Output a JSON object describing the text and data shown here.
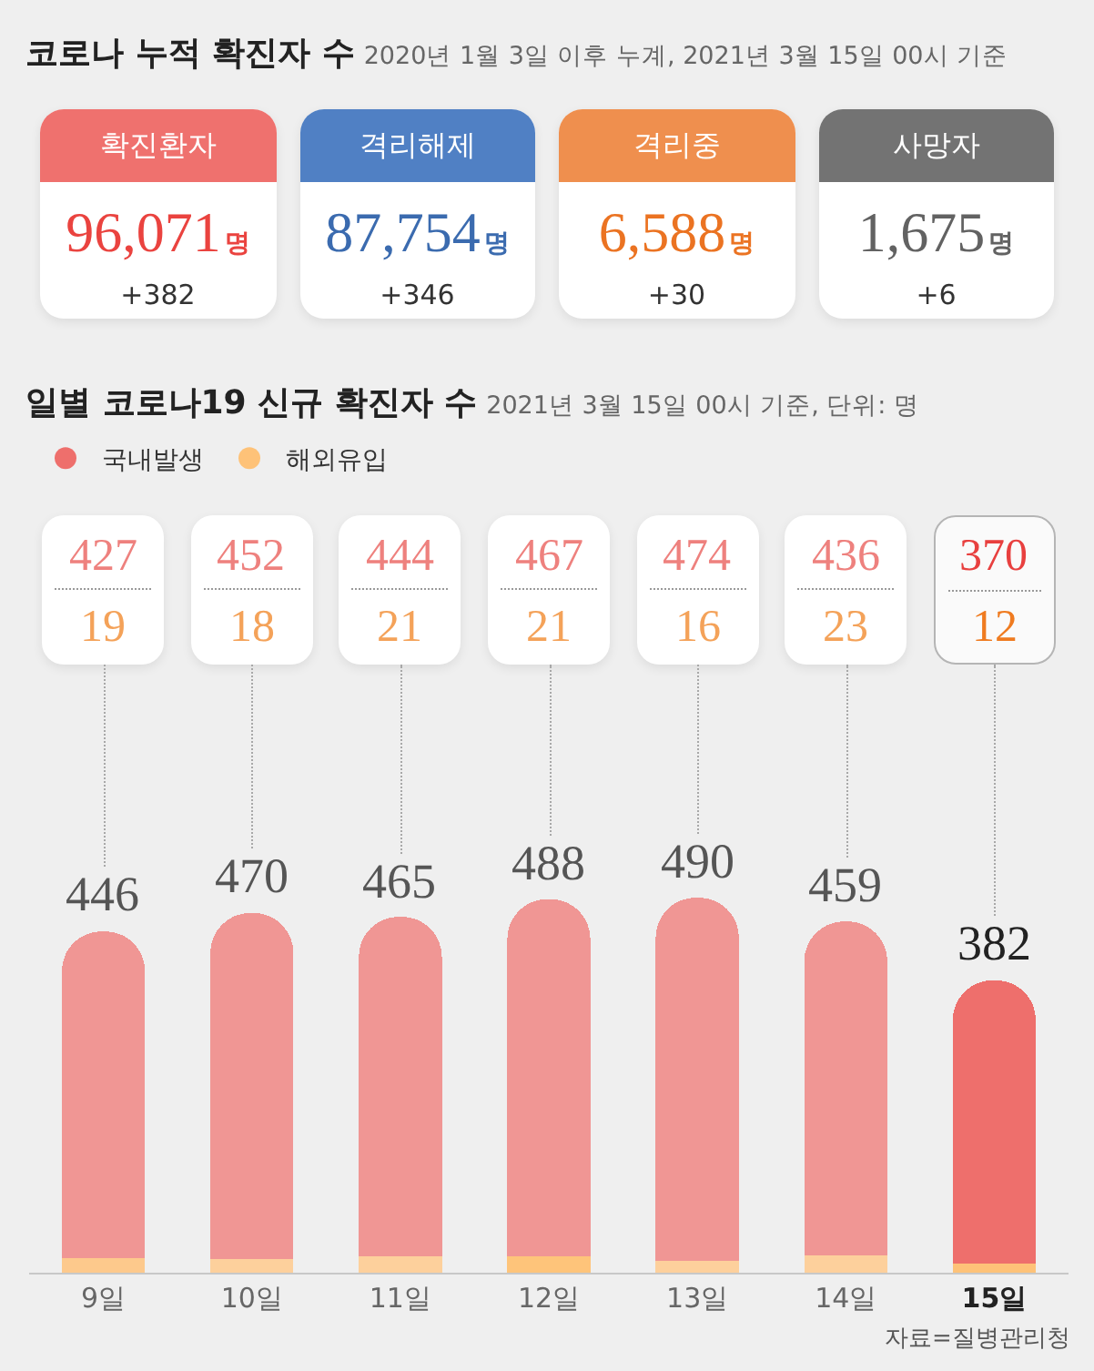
{
  "chart_data": [
    {
      "type": "other",
      "title": "코로나 누적 확진자 수",
      "subtitle": "2020년 1월 3일 이후 누계, 2021년 3월 15일 00시 기준",
      "categories": [
        "확진환자",
        "격리해제",
        "격리중",
        "사망자"
      ],
      "colors": [
        "#ef716e",
        "#5080c4",
        "#ef8f4e",
        "#737373"
      ],
      "series": [
        {
          "values": [
            96071,
            87754,
            6588,
            1675
          ],
          "value_labels": [
            "96,071명",
            "87,754명",
            "6,588명",
            "1,675명"
          ]
        },
        {
          "values": [
            382,
            346,
            30,
            6
          ],
          "value_labels": [
            "+382",
            "+346",
            "+30",
            "+6"
          ]
        }
      ]
    },
    {
      "type": "bar",
      "title": "일별 코로나19 신규 확진자 수",
      "subtitle": "2021년 3월 15일 00시 기준, 단위: 명",
      "categories": [
        "9일",
        "10일",
        "11일",
        "12일",
        "13일",
        "14일",
        "15일"
      ],
      "stacked": true,
      "series": [
        {
          "name": "해외유입",
          "color": "#fec278",
          "colors": [
            "#fdc98c",
            "#fdd09c",
            "#fdd09c",
            "#fec47a",
            "#fdd09c",
            "#fdd09c",
            "#fec278"
          ],
          "values": [
            19,
            18,
            21,
            21,
            16,
            23,
            12
          ],
          "value_labels": [
            "19",
            "18",
            "21",
            "21",
            "16",
            "23",
            "12"
          ]
        },
        {
          "name": "국내발생",
          "color": "#ee6f6c",
          "colors": [
            "#f09694",
            "#f09694",
            "#f09694",
            "#f09694",
            "#f09694",
            "#f09694",
            "#ee6f6c"
          ],
          "values": [
            427,
            452,
            444,
            467,
            474,
            436,
            370
          ],
          "value_labels": [
            "427",
            "452",
            "444",
            "467",
            "474",
            "436",
            "370"
          ]
        }
      ],
      "totals": [
        "446",
        "470",
        "465",
        "488",
        "490",
        "459",
        "382"
      ],
      "legend": "top left",
      "tick_labels": "x",
      "annotations": [
        "자료=질병관리청"
      ]
    }
  ]
}
